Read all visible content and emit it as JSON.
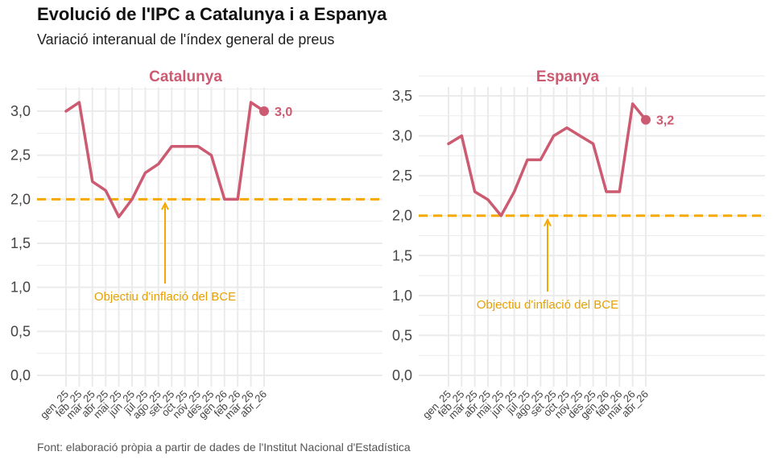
{
  "title": "Evolució de l'IPC a Catalunya i a Espanya",
  "subtitle": "Variació interanual de l'índex general de preus",
  "caption": "Font: elaboració pròpia a partir de dades de l'Institut Nacional d'Estadística",
  "colors": {
    "series": "#cc5a71",
    "target": "#f5a800",
    "target_text": "#e6a000",
    "grid": "#ebebeb",
    "axis_text": "#444444"
  },
  "chart_data": [
    {
      "type": "line",
      "title": "Catalunya",
      "categories": [
        "gen_25",
        "feb_25",
        "mar_25",
        "abr_25",
        "mai_25",
        "jun_25",
        "jul_25",
        "ago_25",
        "set_25",
        "oct_25",
        "nov_25",
        "des_25",
        "gen_26",
        "feb_26",
        "mar_26",
        "abr_26"
      ],
      "values": [
        3.0,
        3.1,
        2.2,
        2.1,
        1.8,
        2.0,
        2.3,
        2.4,
        2.6,
        2.6,
        2.6,
        2.5,
        2.0,
        2.0,
        3.1,
        3.0
      ],
      "last_label": "3,0",
      "ylim": [
        0,
        3.2
      ],
      "yticks": [
        0,
        0.5,
        1.0,
        1.5,
        2.0,
        2.5,
        3.0
      ],
      "ytick_labels": [
        "0,0",
        "0,5",
        "1,0",
        "1,5",
        "2,0",
        "2,5",
        "3,0"
      ],
      "target_value": 2.0,
      "target_label": "Objectiu d'inflació del BCE",
      "xlabel": "",
      "ylabel": "",
      "grid": true
    },
    {
      "type": "line",
      "title": "Espanya",
      "categories": [
        "gen_25",
        "feb_25",
        "mar_25",
        "abr_25",
        "mai_25",
        "jun_25",
        "jul_25",
        "ago_25",
        "set_25",
        "oct_25",
        "nov_25",
        "des_25",
        "gen_26",
        "feb_26",
        "mar_26",
        "abr_26"
      ],
      "values": [
        2.9,
        3.0,
        2.3,
        2.2,
        2.0,
        2.3,
        2.7,
        2.7,
        3.0,
        3.1,
        3.0,
        2.9,
        2.3,
        2.3,
        3.4,
        3.2
      ],
      "last_label": "3,2",
      "ylim": [
        0,
        3.5
      ],
      "yticks": [
        0,
        0.5,
        1.0,
        1.5,
        2.0,
        2.5,
        3.0,
        3.5
      ],
      "ytick_labels": [
        "0,0",
        "0,5",
        "1,0",
        "1,5",
        "2,0",
        "2,5",
        "3,0",
        "3,5"
      ],
      "target_value": 2.0,
      "target_label": "Objectiu d'inflació del BCE",
      "xlabel": "",
      "ylabel": "",
      "grid": true
    }
  ]
}
